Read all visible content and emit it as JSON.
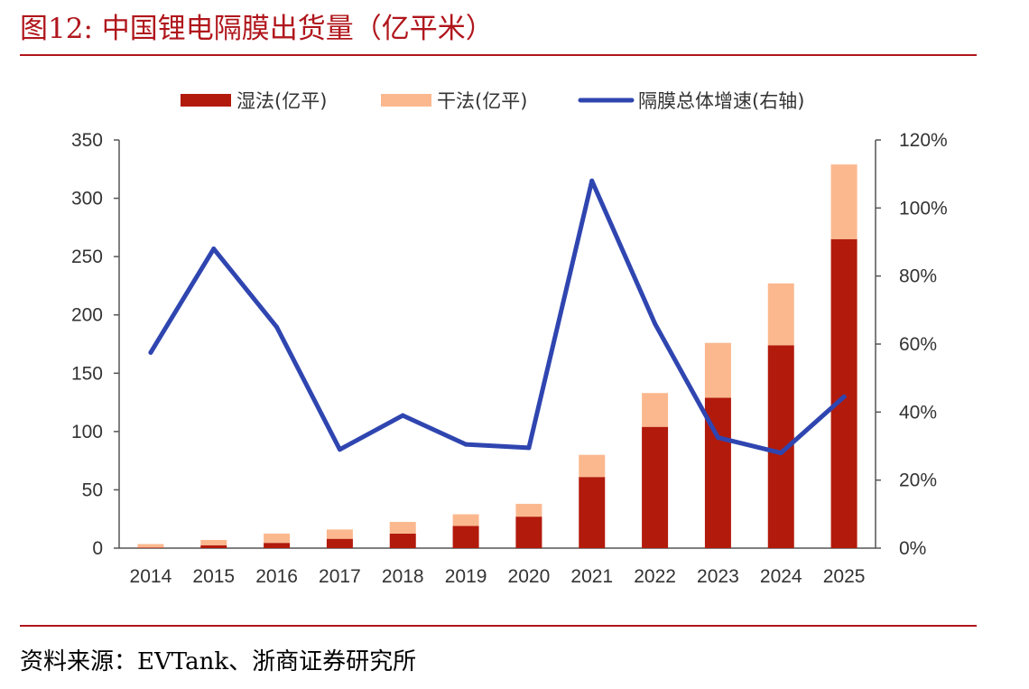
{
  "header": {
    "figure_title": "图12:  中国锂电隔膜出货量（亿平米）"
  },
  "footer": {
    "source": "资料来源：EVTank、浙商证券研究所"
  },
  "colors": {
    "wet": "#b21a0b",
    "dry": "#fbb88e",
    "growth": "#2f45b0",
    "rule": "#b0161c"
  },
  "chart_data": {
    "type": "bar",
    "stacked": true,
    "categories": [
      "2014",
      "2015",
      "2016",
      "2017",
      "2018",
      "2019",
      "2020",
      "2021",
      "2022",
      "2023",
      "2024",
      "2025"
    ],
    "series": [
      {
        "name": "湿法(亿平)",
        "type": "bar",
        "axis": "left",
        "values": [
          0.5,
          2.5,
          4.5,
          8,
          12.5,
          19,
          27,
          61,
          104,
          129,
          174,
          265
        ]
      },
      {
        "name": "干法(亿平)",
        "type": "bar",
        "axis": "left",
        "values": [
          3,
          4.5,
          8,
          8,
          10,
          10,
          11,
          19,
          29,
          47,
          53,
          64
        ]
      },
      {
        "name": "隔膜总体增速(右轴)",
        "type": "line",
        "axis": "right",
        "values": [
          57.5,
          88,
          65,
          29,
          39,
          30.5,
          29.5,
          108,
          66,
          32.5,
          28,
          44.5
        ]
      }
    ],
    "left_axis": {
      "min": 0,
      "max": 350,
      "ticks": [
        0,
        50,
        100,
        150,
        200,
        250,
        300,
        350
      ]
    },
    "right_axis": {
      "min": 0,
      "max": 120,
      "ticks": [
        0,
        20,
        40,
        60,
        80,
        100,
        120
      ],
      "tick_labels": [
        "0%",
        "20%",
        "40%",
        "60%",
        "80%",
        "100%",
        "120%"
      ]
    },
    "legend_position": "top",
    "grid": false
  }
}
